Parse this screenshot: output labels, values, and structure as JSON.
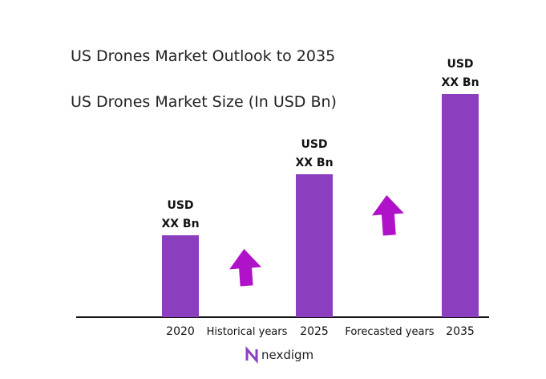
{
  "chart_data": {
    "type": "bar",
    "title": "US Drones Market Outlook to 2035",
    "subtitle": "US Drones Market Size (In USD Bn)",
    "categories": [
      "2020",
      "2025",
      "2035"
    ],
    "values": [
      102,
      178,
      278
    ],
    "value_labels": [
      [
        "USD",
        "XX Bn"
      ],
      [
        "USD",
        "XX Bn"
      ],
      [
        "USD",
        "XX Bn"
      ]
    ],
    "color": "#8b3fbf",
    "ylim": [
      0,
      300
    ],
    "annotations": [
      "Historical years",
      "Forecasted years"
    ],
    "logo": "nexdigm"
  }
}
